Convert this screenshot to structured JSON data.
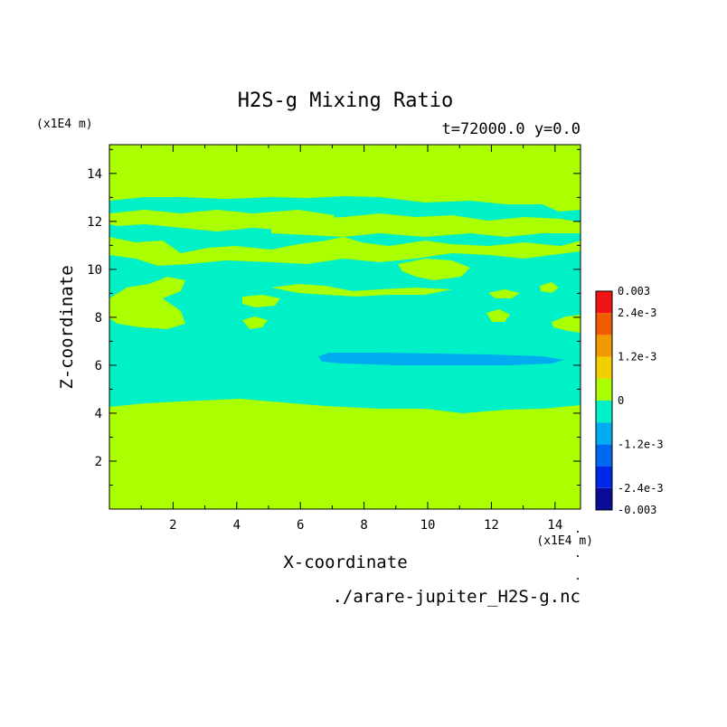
{
  "chart_data": {
    "type": "heatmap",
    "title": "H2S-g Mixing Ratio",
    "subtitle": "t=72000.0 y=0.0",
    "xlabel": "X-coordinate",
    "ylabel": "Z-coordinate",
    "x_unit": "(x1E4 m)",
    "y_unit": "(x1E4 m)",
    "xlim": [
      0,
      14.8
    ],
    "ylim": [
      0,
      15.2
    ],
    "x_ticks": [
      2,
      4,
      6,
      8,
      10,
      12,
      14
    ],
    "y_ticks": [
      2,
      4,
      6,
      8,
      10,
      12,
      14
    ],
    "source": "./arare-jupiter_H2S-g.nc",
    "colorbar": {
      "levels": [
        -0.003,
        -0.0024,
        -0.0018,
        -0.0012,
        -0.0006,
        0,
        0.0006,
        0.0012,
        0.0018,
        0.0024,
        0.003
      ],
      "colors": [
        "#0a0a96",
        "#0028e6",
        "#0068f0",
        "#00acf0",
        "#00f0c8",
        "#aaff00",
        "#f0d000",
        "#f09a00",
        "#f05a00",
        "#f01414"
      ],
      "tick_labels": [
        "0.003",
        "2.4e-3",
        "1.2e-3",
        "0",
        "-1.2e-3",
        "-2.4e-3",
        "-0.003"
      ]
    },
    "regions": [
      {
        "level": "lower-negative",
        "value_range": [
          -0.0012,
          -0.0006
        ],
        "x": [
          6.8,
          12.2
        ],
        "z": [
          5.9,
          6.3
        ]
      }
    ],
    "bands": {
      "surface_positive_z_top": 4.2,
      "mixed_negative_region_z": [
        4.2,
        12.8
      ],
      "upper_positive_z_bottom": 12.8
    }
  }
}
